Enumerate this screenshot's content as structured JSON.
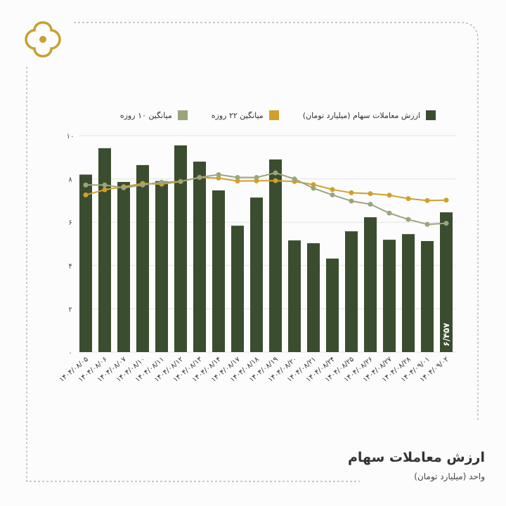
{
  "title": "ارزش معاملات سهام",
  "subtitle": "واحد (میلیارد تومان)",
  "colors": {
    "bars": "#3b4d2f",
    "ma10": "#9ba57b",
    "ma22": "#d1a02a",
    "logo": "#c9a030"
  },
  "chart_data": {
    "type": "bar",
    "title": "ارزش معاملات سهام",
    "ylabel": "واحد (میلیارد تومان)",
    "ylim": [
      0,
      10
    ],
    "yticks": [
      0,
      2,
      4,
      6,
      8,
      10
    ],
    "ytick_labels": [
      "۰",
      "۲",
      "۴",
      "۶",
      "۸",
      "۱۰"
    ],
    "grid": true,
    "legend_position": "top",
    "categories": [
      "۱۴۰۴/۰۸/۰۵",
      "۱۴۰۴/۰۸/۰۶",
      "۱۴۰۴/۰۸/۰۷",
      "۱۴۰۴/۰۸/۱۰",
      "۱۴۰۴/۰۸/۱۱",
      "۱۴۰۴/۰۸/۱۲",
      "۱۴۰۴/۰۸/۱۳",
      "۱۴۰۴/۰۸/۱۴",
      "۱۴۰۴/۰۸/۱۷",
      "۱۴۰۴/۰۸/۱۸",
      "۱۴۰۴/۰۸/۱۹",
      "۱۴۰۴/۰۸/۲۰",
      "۱۴۰۴/۰۸/۲۱",
      "۱۴۰۴/۰۸/۲۴",
      "۱۴۰۴/۰۸/۲۵",
      "۱۴۰۴/۰۸/۲۶",
      "۱۴۰۴/۰۸/۲۷",
      "۱۴۰۴/۰۸/۲۸",
      "۱۴۰۴/۰۹/۰۱",
      "۱۴۰۴/۰۹/۰۲"
    ],
    "series": [
      {
        "name": "ارزش معاملات سهام (میلیارد تومان)",
        "type": "bar",
        "values": [
          8.2,
          9.42,
          7.86,
          8.64,
          7.9,
          9.55,
          8.8,
          7.47,
          5.84,
          7.14,
          8.9,
          5.16,
          5.03,
          4.32,
          5.58,
          6.23,
          5.19,
          5.45,
          5.13,
          6.457
        ]
      },
      {
        "name": "میانگین ۲۲ روزه",
        "type": "line",
        "values": [
          7.26,
          7.5,
          7.64,
          7.79,
          7.76,
          7.88,
          8.07,
          8.04,
          7.9,
          7.91,
          7.92,
          7.88,
          7.74,
          7.51,
          7.36,
          7.32,
          7.25,
          7.09,
          7.0,
          7.02
        ]
      },
      {
        "name": "میانگین ۱۰ روزه",
        "type": "line",
        "values": [
          7.72,
          7.72,
          7.59,
          7.72,
          7.85,
          7.88,
          8.07,
          8.2,
          8.07,
          8.07,
          8.28,
          8.0,
          7.57,
          7.26,
          6.98,
          6.83,
          6.42,
          6.13,
          5.9,
          5.95
        ]
      }
    ],
    "annotations": [
      {
        "label": "۶/۴۵۷",
        "index": 19
      }
    ]
  }
}
